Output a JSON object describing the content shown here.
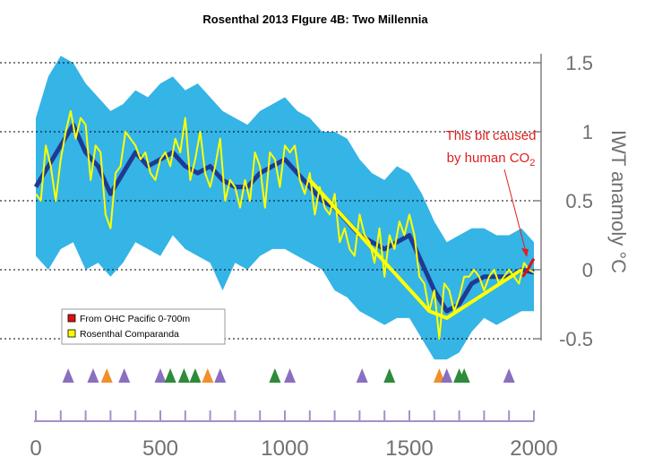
{
  "chart_data": {
    "type": "line",
    "title": "Rosenthal 2013 FIgure 4B: Two Millennia",
    "ylabel": "IWT anamoly °C",
    "xlabel": "",
    "xlim": [
      0,
      2000
    ],
    "ylim": [
      -0.5,
      1.5
    ],
    "x_ticks": [
      "0",
      "500",
      "1000",
      "1500",
      "2000"
    ],
    "y_ticks": [
      "1.5",
      "1",
      "0.5",
      "0",
      "-0.5"
    ],
    "grid": "horizontal dotted",
    "legend_position": "lower-left",
    "annotation": {
      "text_line1": "This bit caused",
      "text_line2_prefix": "by human CO",
      "text_line2_subscript": "2",
      "color": "#e02020"
    },
    "colors": {
      "band": "#35b4e6",
      "median": "#1f3a93",
      "comparanda": "#ffff00",
      "ohc": "#e01010",
      "annotation": "#e02020",
      "marker_purple": "#8a6fc0",
      "marker_orange": "#f0902a",
      "marker_green": "#2e8b3a"
    },
    "series": [
      {
        "name": "Rosenthal Comparanda",
        "color": "#ffff00",
        "x": [
          0,
          20,
          40,
          60,
          80,
          100,
          120,
          140,
          160,
          180,
          200,
          220,
          240,
          260,
          280,
          300,
          320,
          340,
          360,
          380,
          400,
          420,
          440,
          460,
          480,
          500,
          520,
          540,
          560,
          580,
          600,
          620,
          640,
          660,
          680,
          700,
          720,
          740,
          760,
          780,
          800,
          820,
          840,
          860,
          880,
          900,
          920,
          940,
          960,
          980,
          1000,
          1020,
          1040,
          1060,
          1080,
          1100,
          1120,
          1140,
          1160,
          1180,
          1200,
          1220,
          1240,
          1260,
          1280,
          1300,
          1320,
          1340,
          1360,
          1380,
          1400,
          1420,
          1440,
          1460,
          1480,
          1500,
          1520,
          1540,
          1560,
          1580,
          1600,
          1620,
          1640,
          1660,
          1680,
          1700,
          1720,
          1740,
          1760,
          1780,
          1800,
          1820,
          1840,
          1860,
          1880,
          1900,
          1920,
          1940,
          1960,
          1980,
          2000
        ],
        "y": [
          0.55,
          0.5,
          0.9,
          0.75,
          0.5,
          0.8,
          1.0,
          1.15,
          0.95,
          1.1,
          1.05,
          0.65,
          0.9,
          0.85,
          0.4,
          0.3,
          0.7,
          0.75,
          1.0,
          0.95,
          0.9,
          0.8,
          0.85,
          0.7,
          0.65,
          0.8,
          0.85,
          0.75,
          0.95,
          0.85,
          1.1,
          0.65,
          0.8,
          1.0,
          0.7,
          0.6,
          0.75,
          0.95,
          0.5,
          0.65,
          0.6,
          0.45,
          0.65,
          0.5,
          0.85,
          0.75,
          0.45,
          0.85,
          0.8,
          0.6,
          0.9,
          0.85,
          0.9,
          0.65,
          0.55,
          0.7,
          0.4,
          0.6,
          0.45,
          0.4,
          0.55,
          0.2,
          0.3,
          0.15,
          0.1,
          0.4,
          0.25,
          0.2,
          0.05,
          0.3,
          -0.05,
          0.25,
          0.15,
          0.35,
          0.25,
          0.4,
          0.25,
          -0.05,
          -0.1,
          -0.3,
          -0.15,
          -0.5,
          -0.1,
          -0.15,
          -0.3,
          -0.2,
          -0.05,
          -0.05,
          0.0,
          -0.05,
          -0.15,
          -0.05,
          0.0,
          -0.1,
          -0.05,
          0.0,
          -0.05,
          -0.1,
          0.05,
          0.0,
          -0.02
        ]
      },
      {
        "name": "Median",
        "color": "#1f3a93",
        "x": [
          0,
          50,
          100,
          150,
          200,
          250,
          300,
          350,
          400,
          450,
          500,
          550,
          600,
          650,
          700,
          750,
          800,
          850,
          900,
          950,
          1000,
          1050,
          1100,
          1150,
          1200,
          1250,
          1300,
          1350,
          1400,
          1450,
          1500,
          1550,
          1600,
          1650,
          1700,
          1750,
          1800,
          1850,
          1900,
          1950,
          2000
        ],
        "y": [
          0.6,
          0.75,
          0.9,
          1.05,
          0.85,
          0.75,
          0.55,
          0.7,
          0.85,
          0.75,
          0.8,
          0.85,
          0.75,
          0.7,
          0.75,
          0.65,
          0.6,
          0.6,
          0.7,
          0.75,
          0.8,
          0.7,
          0.6,
          0.5,
          0.45,
          0.35,
          0.25,
          0.2,
          0.15,
          0.2,
          0.25,
          0.05,
          -0.15,
          -0.3,
          -0.25,
          -0.1,
          -0.05,
          -0.05,
          -0.05,
          0.0,
          -0.02
        ]
      },
      {
        "name": "Upper",
        "color": "#35b4e6",
        "x": [
          0,
          50,
          100,
          150,
          200,
          250,
          300,
          350,
          400,
          450,
          500,
          550,
          600,
          650,
          700,
          750,
          800,
          850,
          900,
          950,
          1000,
          1050,
          1100,
          1150,
          1200,
          1250,
          1300,
          1350,
          1400,
          1450,
          1500,
          1550,
          1600,
          1650,
          1700,
          1750,
          1800,
          1850,
          1900,
          1950,
          2000
        ],
        "y": [
          1.1,
          1.4,
          1.55,
          1.5,
          1.35,
          1.25,
          1.15,
          1.2,
          1.3,
          1.25,
          1.35,
          1.4,
          1.3,
          1.35,
          1.25,
          1.15,
          1.1,
          1.05,
          1.15,
          1.2,
          1.25,
          1.15,
          1.1,
          1.0,
          1.0,
          0.95,
          0.8,
          0.7,
          0.65,
          0.75,
          0.7,
          0.55,
          0.35,
          0.2,
          0.25,
          0.3,
          0.3,
          0.25,
          0.25,
          0.3,
          0.2
        ]
      },
      {
        "name": "Lower",
        "color": "#35b4e6",
        "x": [
          0,
          50,
          100,
          150,
          200,
          250,
          300,
          350,
          400,
          450,
          500,
          550,
          600,
          650,
          700,
          750,
          800,
          850,
          900,
          950,
          1000,
          1050,
          1100,
          1150,
          1200,
          1250,
          1300,
          1350,
          1400,
          1450,
          1500,
          1550,
          1600,
          1650,
          1700,
          1750,
          1800,
          1850,
          1900,
          1950,
          2000
        ],
        "y": [
          0.1,
          0.0,
          0.15,
          0.2,
          0.0,
          0.05,
          -0.05,
          0.05,
          0.2,
          0.15,
          0.1,
          0.25,
          0.15,
          0.1,
          0.05,
          -0.15,
          0.05,
          0.0,
          0.1,
          0.15,
          0.15,
          0.1,
          0.05,
          0.0,
          -0.15,
          -0.2,
          -0.3,
          -0.35,
          -0.4,
          -0.35,
          -0.35,
          -0.5,
          -0.65,
          -0.65,
          -0.6,
          -0.45,
          -0.35,
          -0.4,
          -0.35,
          -0.3,
          -0.3
        ]
      },
      {
        "name": "Yellow trend",
        "color": "#ffff00",
        "x": [
          1100,
          1580,
          1650,
          1950
        ],
        "y": [
          0.65,
          -0.3,
          -0.35,
          0.0
        ]
      },
      {
        "name": "From OHC Pacific 0-700m",
        "color": "#e01010",
        "x": [
          1955,
          1975,
          1990,
          2000
        ],
        "y": [
          -0.05,
          0.0,
          0.05,
          0.08
        ]
      }
    ],
    "legend": [
      {
        "label": "From OHC Pacific 0-700m",
        "color": "#e01010"
      },
      {
        "label": "Rosenthal Comparanda",
        "color": "#ffff00"
      }
    ],
    "markers": [
      {
        "x": 130,
        "color": "purple"
      },
      {
        "x": 230,
        "color": "purple"
      },
      {
        "x": 285,
        "color": "orange"
      },
      {
        "x": 355,
        "color": "purple"
      },
      {
        "x": 500,
        "color": "purple"
      },
      {
        "x": 540,
        "color": "green"
      },
      {
        "x": 595,
        "color": "green"
      },
      {
        "x": 640,
        "color": "green"
      },
      {
        "x": 690,
        "color": "orange"
      },
      {
        "x": 740,
        "color": "purple"
      },
      {
        "x": 960,
        "color": "green"
      },
      {
        "x": 1020,
        "color": "purple"
      },
      {
        "x": 1310,
        "color": "purple"
      },
      {
        "x": 1420,
        "color": "green"
      },
      {
        "x": 1620,
        "color": "orange"
      },
      {
        "x": 1650,
        "color": "purple"
      },
      {
        "x": 1700,
        "color": "green"
      },
      {
        "x": 1720,
        "color": "green"
      },
      {
        "x": 1900,
        "color": "purple"
      }
    ]
  }
}
